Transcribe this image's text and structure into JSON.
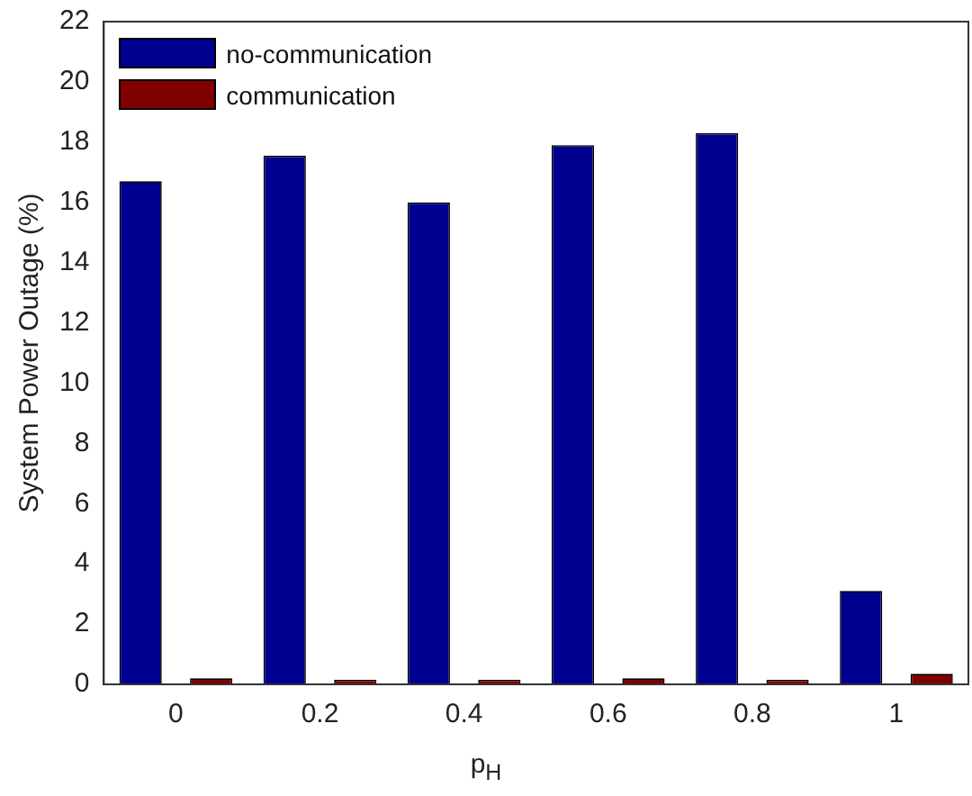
{
  "chart_data": {
    "type": "bar",
    "xlabel": "p$_{H}$",
    "ylabel": "System Power Outage (%)",
    "categories": [
      "0",
      "0.2",
      "0.4",
      "0.6",
      "0.8",
      "1"
    ],
    "series": [
      {
        "name": "no-communication",
        "color": "#000090",
        "values": [
          16.7,
          17.55,
          16.0,
          17.9,
          18.3,
          3.1
        ]
      },
      {
        "name": "communication",
        "color": "#800000",
        "values": [
          0.2,
          0.15,
          0.15,
          0.2,
          0.15,
          0.35
        ]
      }
    ],
    "ylim": [
      0,
      22
    ],
    "yticks": [
      0,
      2,
      4,
      6,
      8,
      10,
      12,
      14,
      16,
      18,
      20,
      22
    ],
    "grid": false,
    "legend": "top left"
  }
}
